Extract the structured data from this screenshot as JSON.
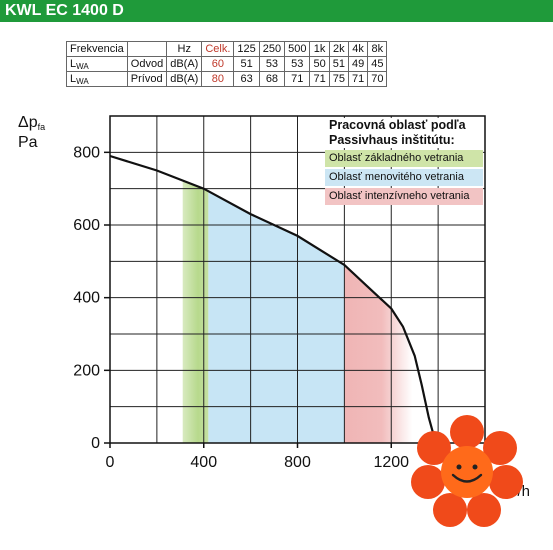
{
  "header": {
    "title": "KWL EC 1400 D"
  },
  "spec_table": {
    "headers": [
      "Frekvencia",
      "",
      "Hz",
      "Celk.",
      "125",
      "250",
      "500",
      "1k",
      "2k",
      "4k",
      "8k"
    ],
    "rows": [
      {
        "symbol": "L",
        "symbol_sub": "WA",
        "name": "Odvod",
        "unit": "dB(A)",
        "total": "60",
        "values": [
          "51",
          "53",
          "53",
          "50",
          "51",
          "49",
          "45"
        ]
      },
      {
        "symbol": "L",
        "symbol_sub": "WA",
        "name": "Prívod",
        "unit": "dB(A)",
        "total": "80",
        "values": [
          "63",
          "68",
          "71",
          "71",
          "75",
          "71",
          "70"
        ]
      }
    ]
  },
  "axis": {
    "y_symbol": "Δp",
    "y_sub": "fa",
    "y_unit": "Pa",
    "x_unit_base": "m",
    "x_unit_sup": "3",
    "x_unit_tail": "/h"
  },
  "legend": {
    "title_line1": "Pracovná oblasť podľa",
    "title_line2": "Passivhaus inštitútu:",
    "items": [
      {
        "label": "Oblasť základného vetrania",
        "color": "#cfe4a8"
      },
      {
        "label": "Oblasť menovitého vetrania",
        "color": "#cce6f4"
      },
      {
        "label": "Oblasť intenzívneho vetrania",
        "color": "#f2c4c4"
      }
    ]
  },
  "chart_data": {
    "type": "area",
    "xlim": [
      0,
      1600
    ],
    "ylim": [
      0,
      900
    ],
    "x_ticks": [
      0,
      400,
      800,
      1200
    ],
    "y_ticks": [
      0,
      200,
      400,
      600,
      800
    ],
    "grid": true,
    "legend_position": "top-right",
    "series": [
      {
        "x": [
          0,
          200,
          400,
          600,
          800,
          1000,
          1100,
          1200,
          1250,
          1300,
          1330,
          1360,
          1390
        ],
        "y": [
          790,
          750,
          700,
          630,
          570,
          490,
          430,
          370,
          320,
          240,
          160,
          70,
          0
        ]
      }
    ],
    "zones": [
      {
        "label": "Oblasť základného vetrania",
        "x_range": [
          310,
          420
        ],
        "color": "#b7d98c"
      },
      {
        "label": "Oblasť menovitého vetrania",
        "x_range": [
          420,
          1000
        ],
        "color": "#c7e5f5"
      },
      {
        "label": "Oblasť intenzívneho vetrania",
        "x_range": [
          1000,
          1290
        ],
        "color": "#f0b5b5"
      }
    ]
  }
}
